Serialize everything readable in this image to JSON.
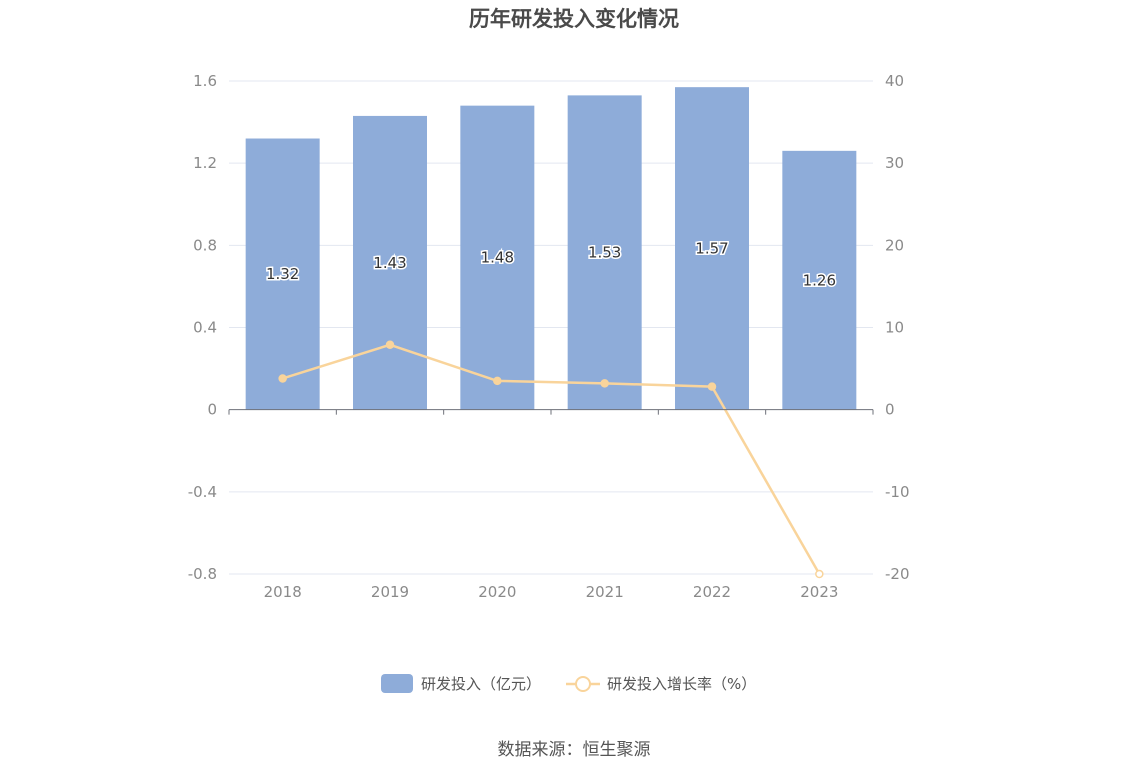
{
  "chart_data": {
    "type": "bar",
    "title": "历年研发投入变化情况",
    "categories": [
      "2018",
      "2019",
      "2020",
      "2021",
      "2022",
      "2023"
    ],
    "series": [
      {
        "name": "研发投入（亿元）",
        "type": "bar",
        "axis": "left",
        "color": "#8eacd9",
        "values": [
          1.32,
          1.43,
          1.48,
          1.53,
          1.57,
          1.26
        ],
        "labels": [
          "1.32",
          "1.43",
          "1.48",
          "1.53",
          "1.57",
          "1.26"
        ]
      },
      {
        "name": "研发投入增长率（%）",
        "type": "line",
        "axis": "right",
        "color": "#f9d49b",
        "values": [
          3.8,
          7.9,
          3.5,
          3.2,
          2.8,
          -20.0
        ]
      }
    ],
    "left_axis": {
      "min": -0.8,
      "max": 1.6,
      "ticks": [
        "1.6",
        "1.2",
        "0.8",
        "0.4",
        "0",
        "-0.4",
        "-0.8"
      ]
    },
    "right_axis": {
      "min": -20,
      "max": 40,
      "ticks": [
        "40",
        "30",
        "20",
        "10",
        "0",
        "-10",
        "-20"
      ]
    },
    "grid": true,
    "legend_position": "bottom"
  },
  "source": "数据来源：恒生聚源"
}
